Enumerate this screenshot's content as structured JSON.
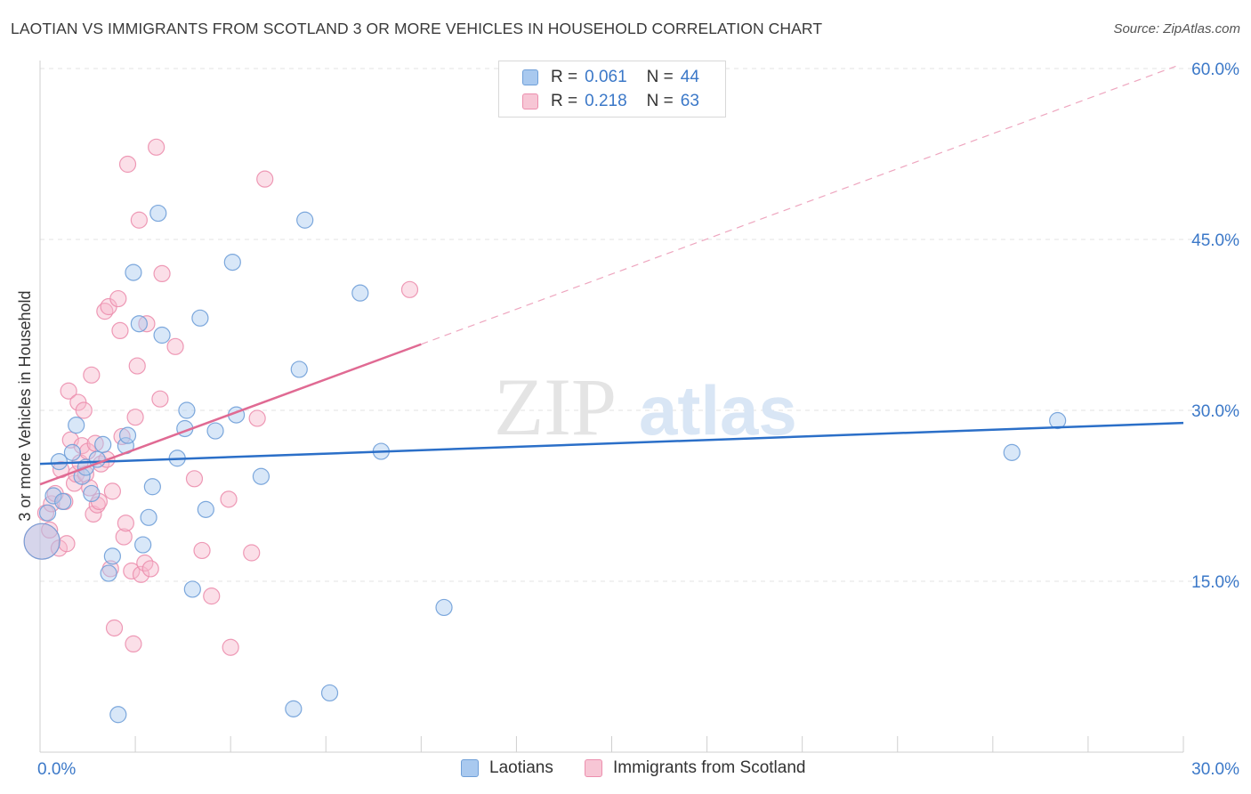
{
  "header": {
    "title": "LAOTIAN VS IMMIGRANTS FROM SCOTLAND 3 OR MORE VEHICLES IN HOUSEHOLD CORRELATION CHART",
    "source": "Source: ZipAtlas.com"
  },
  "watermark": {
    "part1": "ZIP",
    "part2": "atlas"
  },
  "legend_top": {
    "rows": [
      {
        "r_label": "R =",
        "r_value": "0.061",
        "n_label": "N =",
        "n_value": "44"
      },
      {
        "r_label": "R =",
        "r_value": "0.218",
        "n_label": "N =",
        "n_value": "63"
      }
    ]
  },
  "legend_bottom": {
    "items": [
      {
        "label": "Laotians"
      },
      {
        "label": "Immigrants from Scotland"
      }
    ]
  },
  "chart_data": {
    "type": "scatter",
    "title": "LAOTIAN VS IMMIGRANTS FROM SCOTLAND 3 OR MORE VEHICLES IN HOUSEHOLD CORRELATION CHART",
    "ylabel": "3 or more Vehicles in Household",
    "xlabel": "",
    "xlim": [
      0,
      30
    ],
    "ylim": [
      0,
      62.5
    ],
    "x_ticks": [
      {
        "value": 0,
        "label": "0.0%"
      },
      {
        "value": 30,
        "label": "30.0%"
      }
    ],
    "y_ticks": [
      {
        "value": 15,
        "label": "15.0%"
      },
      {
        "value": 30,
        "label": "30.0%"
      },
      {
        "value": 45,
        "label": "45.0%"
      },
      {
        "value": 60,
        "label": "60.0%"
      }
    ],
    "grid": true,
    "legend_position": "top-center",
    "colors": {
      "laotians_fill": "#a9c9ef",
      "laotians_stroke": "#6f9fd8",
      "laotians_line": "#2b6fc8",
      "scotland_fill": "#f7b8cb",
      "scotland_stroke": "#ec8fae",
      "scotland_line": "#e06a93",
      "tick_label": "#3b78c8"
    },
    "series": [
      {
        "name": "Laotians",
        "r": 0.061,
        "n": 44,
        "trend": {
          "x": [
            0,
            30
          ],
          "y": [
            25.3,
            28.9
          ]
        },
        "points": [
          {
            "x": 0.05,
            "y": 18.5,
            "s": "L"
          },
          {
            "x": 0.2,
            "y": 21.0
          },
          {
            "x": 0.35,
            "y": 22.5
          },
          {
            "x": 0.5,
            "y": 25.5
          },
          {
            "x": 0.6,
            "y": 22.0
          },
          {
            "x": 0.85,
            "y": 26.3
          },
          {
            "x": 0.95,
            "y": 28.7
          },
          {
            "x": 1.1,
            "y": 24.2
          },
          {
            "x": 1.2,
            "y": 25.0
          },
          {
            "x": 1.35,
            "y": 22.7
          },
          {
            "x": 1.5,
            "y": 25.7
          },
          {
            "x": 1.65,
            "y": 27.0
          },
          {
            "x": 1.8,
            "y": 15.7
          },
          {
            "x": 1.9,
            "y": 17.2
          },
          {
            "x": 2.05,
            "y": 3.3
          },
          {
            "x": 2.25,
            "y": 26.9
          },
          {
            "x": 2.3,
            "y": 27.8
          },
          {
            "x": 2.45,
            "y": 42.1
          },
          {
            "x": 2.6,
            "y": 37.6
          },
          {
            "x": 2.7,
            "y": 18.2
          },
          {
            "x": 2.85,
            "y": 20.6
          },
          {
            "x": 2.95,
            "y": 23.3
          },
          {
            "x": 3.1,
            "y": 47.3
          },
          {
            "x": 3.2,
            "y": 36.6
          },
          {
            "x": 3.6,
            "y": 25.8
          },
          {
            "x": 3.8,
            "y": 28.4
          },
          {
            "x": 3.85,
            "y": 30.0
          },
          {
            "x": 4.0,
            "y": 14.3
          },
          {
            "x": 4.2,
            "y": 38.1
          },
          {
            "x": 4.35,
            "y": 21.3
          },
          {
            "x": 4.6,
            "y": 28.2
          },
          {
            "x": 5.05,
            "y": 43.0
          },
          {
            "x": 5.15,
            "y": 29.6
          },
          {
            "x": 5.8,
            "y": 24.2
          },
          {
            "x": 6.65,
            "y": 3.8
          },
          {
            "x": 6.8,
            "y": 33.6
          },
          {
            "x": 6.95,
            "y": 46.7
          },
          {
            "x": 7.6,
            "y": 5.2
          },
          {
            "x": 8.4,
            "y": 40.3
          },
          {
            "x": 8.95,
            "y": 26.4
          },
          {
            "x": 10.6,
            "y": 12.7
          },
          {
            "x": 25.5,
            "y": 26.3
          },
          {
            "x": 26.7,
            "y": 29.1
          }
        ]
      },
      {
        "name": "Immigrants from Scotland",
        "r": 0.218,
        "n": 63,
        "trend": {
          "x": [
            0,
            10
          ],
          "y": [
            23.5,
            35.8
          ]
        },
        "trend_dashed": {
          "x": [
            10,
            29.8
          ],
          "y": [
            35.8,
            60.2
          ]
        },
        "points": [
          {
            "x": 0.05,
            "y": 18.5,
            "s": "L"
          },
          {
            "x": 0.15,
            "y": 21.0
          },
          {
            "x": 0.25,
            "y": 19.5
          },
          {
            "x": 0.3,
            "y": 21.8
          },
          {
            "x": 0.4,
            "y": 22.7
          },
          {
            "x": 0.5,
            "y": 17.9
          },
          {
            "x": 0.55,
            "y": 24.8
          },
          {
            "x": 0.65,
            "y": 22.0
          },
          {
            "x": 0.7,
            "y": 18.3
          },
          {
            "x": 0.8,
            "y": 27.4
          },
          {
            "x": 0.75,
            "y": 31.7
          },
          {
            "x": 0.9,
            "y": 23.6
          },
          {
            "x": 0.95,
            "y": 24.4
          },
          {
            "x": 1.0,
            "y": 30.7
          },
          {
            "x": 1.05,
            "y": 25.4
          },
          {
            "x": 1.1,
            "y": 26.9
          },
          {
            "x": 1.15,
            "y": 30.0
          },
          {
            "x": 1.2,
            "y": 24.4
          },
          {
            "x": 1.25,
            "y": 26.4
          },
          {
            "x": 1.3,
            "y": 23.2
          },
          {
            "x": 1.35,
            "y": 33.1
          },
          {
            "x": 1.4,
            "y": 20.9
          },
          {
            "x": 1.45,
            "y": 27.1
          },
          {
            "x": 1.5,
            "y": 21.7
          },
          {
            "x": 1.55,
            "y": 22.0
          },
          {
            "x": 1.6,
            "y": 25.3
          },
          {
            "x": 1.7,
            "y": 38.7
          },
          {
            "x": 1.75,
            "y": 25.7
          },
          {
            "x": 1.8,
            "y": 39.1
          },
          {
            "x": 1.85,
            "y": 16.1
          },
          {
            "x": 1.9,
            "y": 22.9
          },
          {
            "x": 1.95,
            "y": 10.9
          },
          {
            "x": 2.05,
            "y": 39.8
          },
          {
            "x": 2.1,
            "y": 37.0
          },
          {
            "x": 2.15,
            "y": 27.7
          },
          {
            "x": 2.2,
            "y": 18.9
          },
          {
            "x": 2.25,
            "y": 20.1
          },
          {
            "x": 2.3,
            "y": 51.6
          },
          {
            "x": 2.4,
            "y": 15.9
          },
          {
            "x": 2.45,
            "y": 9.5
          },
          {
            "x": 2.5,
            "y": 29.4
          },
          {
            "x": 2.55,
            "y": 33.9
          },
          {
            "x": 2.6,
            "y": 46.7
          },
          {
            "x": 2.65,
            "y": 15.6
          },
          {
            "x": 2.75,
            "y": 16.6
          },
          {
            "x": 2.8,
            "y": 37.6
          },
          {
            "x": 2.9,
            "y": 16.1
          },
          {
            "x": 3.05,
            "y": 53.1
          },
          {
            "x": 3.15,
            "y": 31.0
          },
          {
            "x": 3.2,
            "y": 42.0
          },
          {
            "x": 3.55,
            "y": 35.6
          },
          {
            "x": 4.05,
            "y": 24.0
          },
          {
            "x": 4.25,
            "y": 17.7
          },
          {
            "x": 4.5,
            "y": 13.7
          },
          {
            "x": 4.95,
            "y": 22.2
          },
          {
            "x": 5.0,
            "y": 9.2
          },
          {
            "x": 5.7,
            "y": 29.3
          },
          {
            "x": 5.55,
            "y": 17.5
          },
          {
            "x": 5.9,
            "y": 50.3
          },
          {
            "x": 9.7,
            "y": 40.6
          }
        ]
      }
    ]
  }
}
